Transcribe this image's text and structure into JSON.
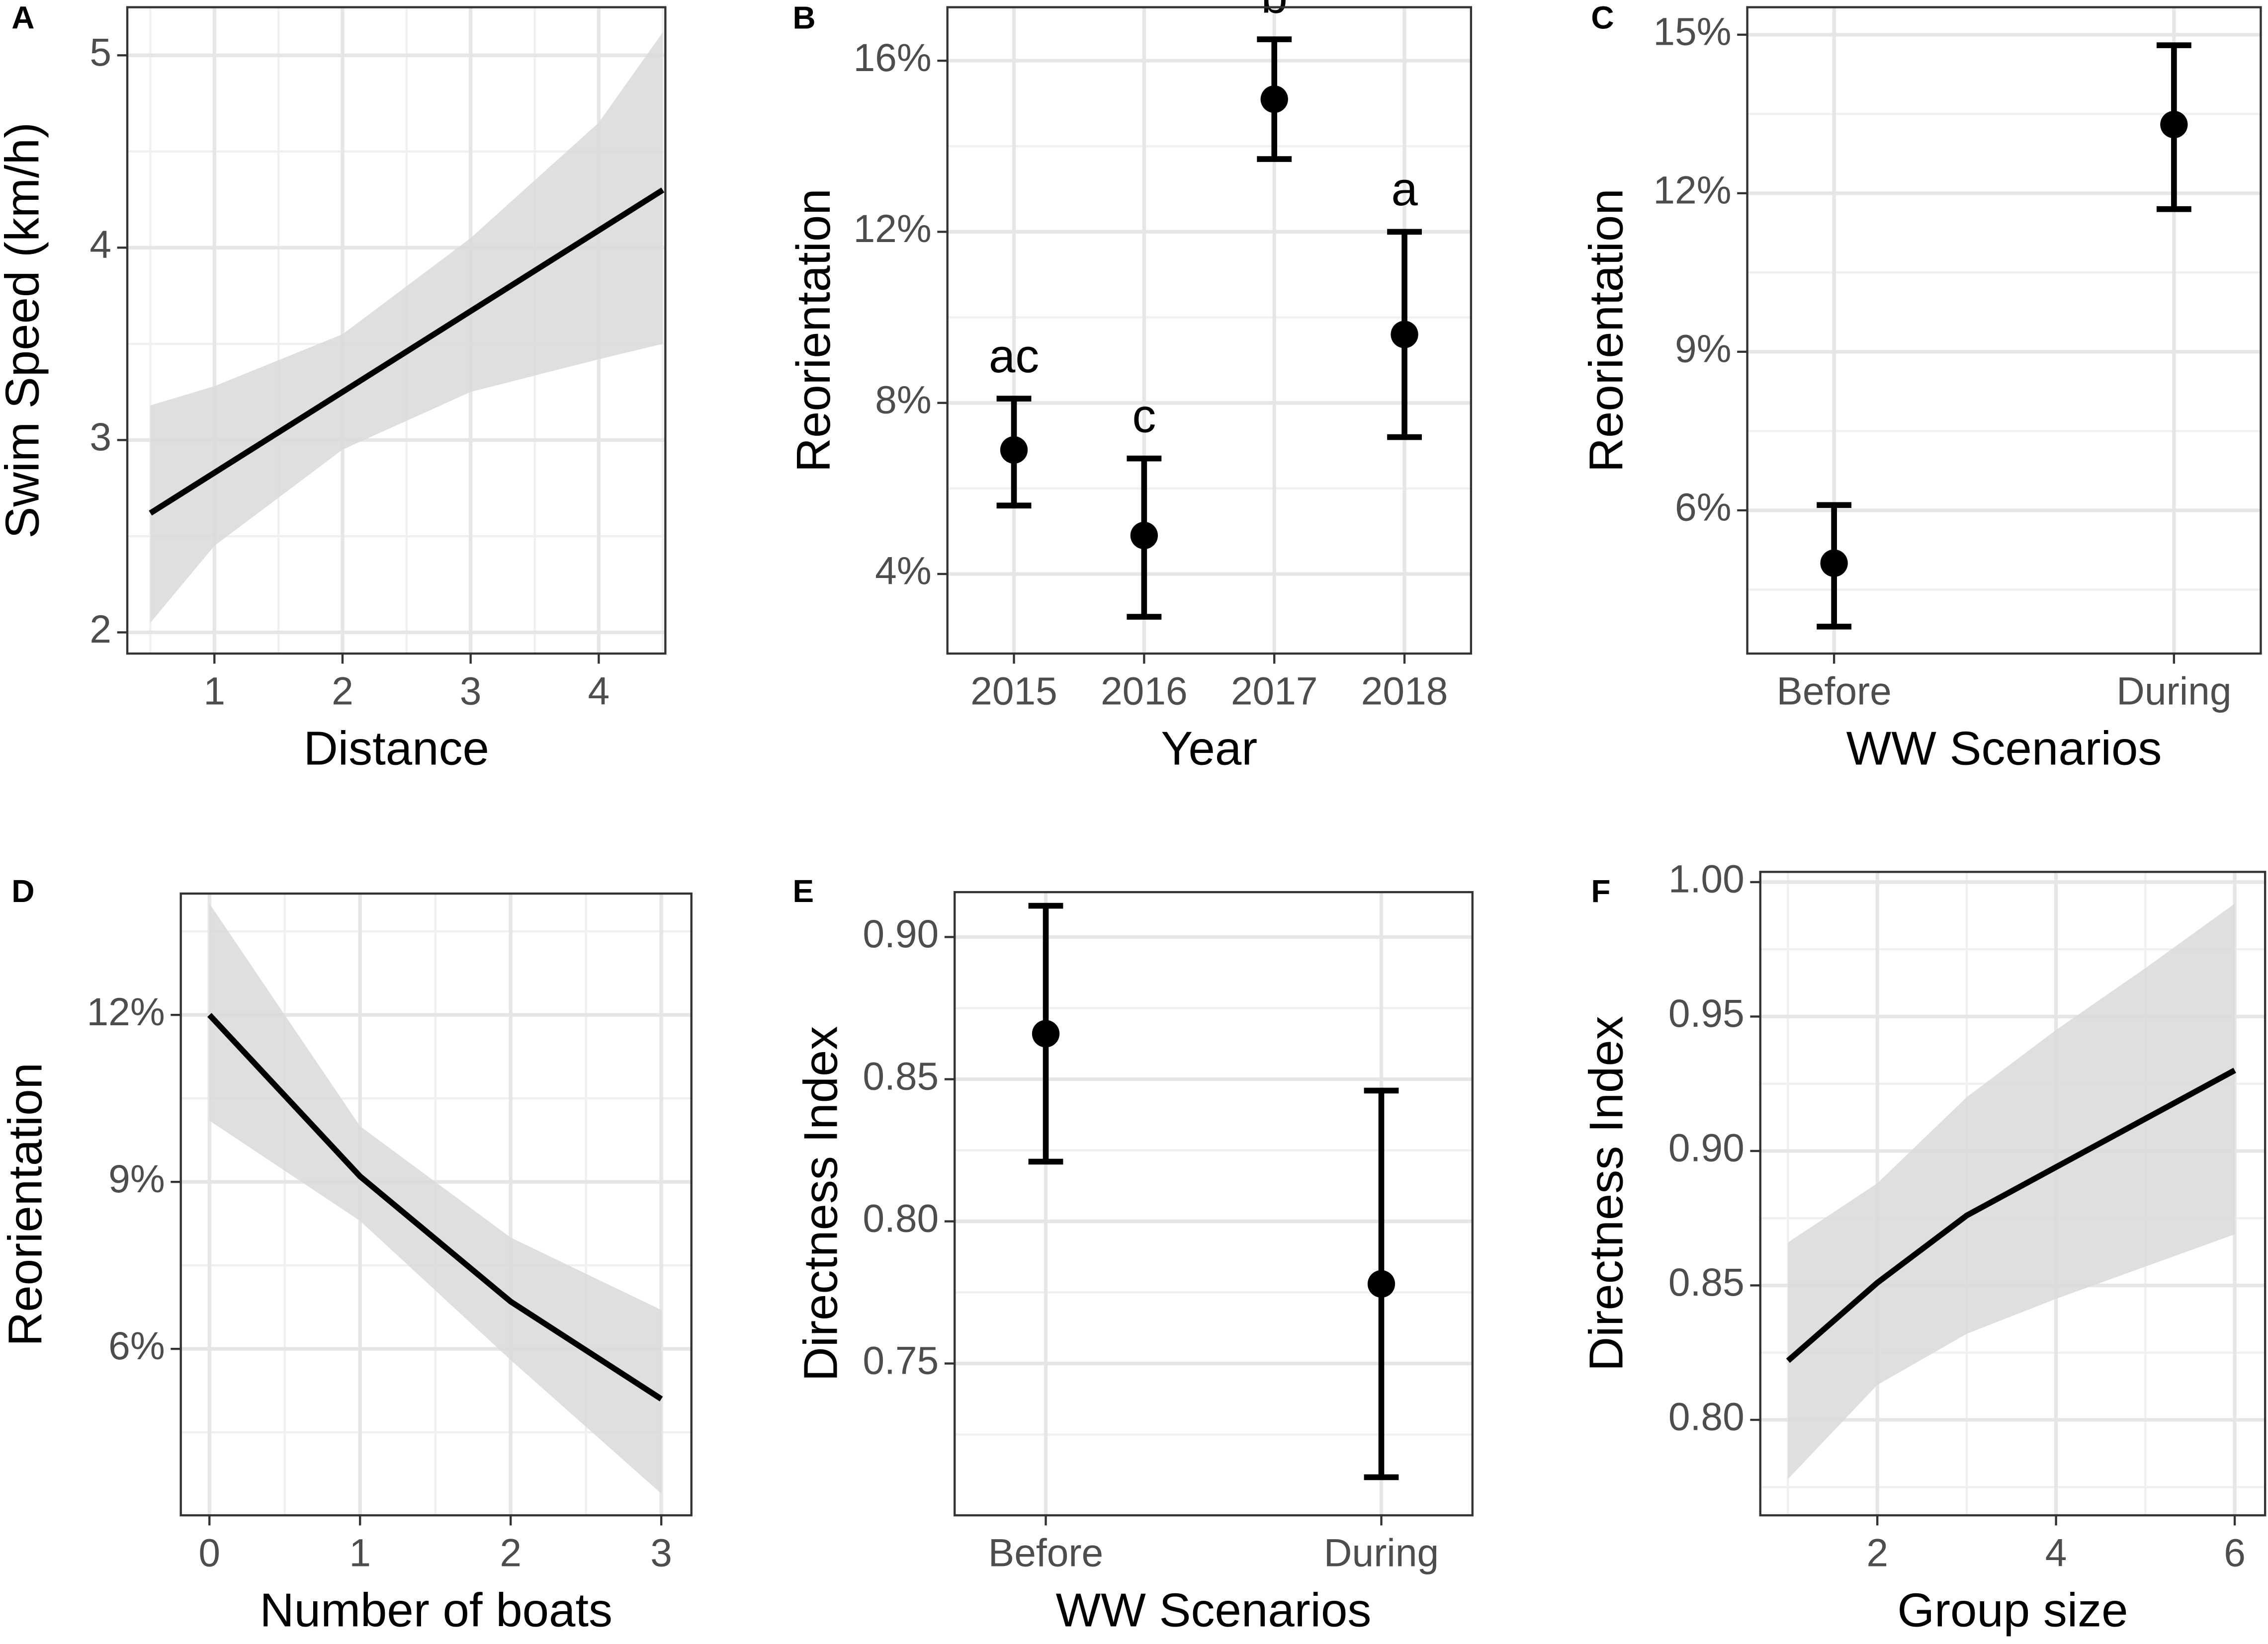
{
  "chart_data": [
    {
      "type": "line",
      "label": "A",
      "xlabel": "Distance",
      "ylabel": "Swim Speed (km/h)",
      "x": [
        0.5,
        1,
        2,
        3,
        4,
        4.5
      ],
      "values": [
        2.62,
        2.83,
        3.25,
        3.67,
        4.09,
        4.3
      ],
      "upper": [
        3.18,
        3.28,
        3.55,
        4.05,
        4.65,
        5.12
      ],
      "lower": [
        2.05,
        2.45,
        2.95,
        3.25,
        3.42,
        3.5
      ],
      "color": "#000000",
      "band_color": "#d9d9d9",
      "xlim": [
        0.32,
        4.52
      ],
      "xticks": [
        1,
        2,
        3,
        4
      ],
      "ylim": [
        1.89,
        5.25
      ],
      "yticks": [
        2,
        3,
        4,
        5
      ],
      "grid": true
    },
    {
      "type": "errorbar",
      "label": "B",
      "xlabel": "Year",
      "ylabel": "Reorientation",
      "categories": [
        "2015",
        "2016",
        "2017",
        "2018"
      ],
      "values": [
        6.9,
        4.9,
        15.1,
        9.6
      ],
      "lower": [
        5.6,
        3.0,
        13.7,
        7.2
      ],
      "upper": [
        8.1,
        6.7,
        16.5,
        12.0
      ],
      "annotations": [
        "ac",
        "c",
        "b",
        "a"
      ],
      "color": "#000000",
      "ylim": [
        2.14,
        17.25
      ],
      "yticks": [
        {
          "value": 4,
          "label": "4%"
        },
        {
          "value": 8,
          "label": "8%"
        },
        {
          "value": 12,
          "label": "12%"
        },
        {
          "value": 16,
          "label": "16%"
        }
      ],
      "grid": true
    },
    {
      "type": "errorbar",
      "label": "C",
      "xlabel": "WW Scenarios",
      "ylabel": "Reorientation",
      "categories": [
        "Before",
        "During"
      ],
      "values": [
        5.0,
        13.3
      ],
      "lower": [
        3.8,
        11.7
      ],
      "upper": [
        6.1,
        14.8
      ],
      "color": "#000000",
      "ylim": [
        3.29,
        15.52
      ],
      "yticks": [
        {
          "value": 6,
          "label": "6%"
        },
        {
          "value": 9,
          "label": "9%"
        },
        {
          "value": 12,
          "label": "12%"
        },
        {
          "value": 15,
          "label": "15%"
        }
      ],
      "grid": true
    },
    {
      "type": "line",
      "label": "D",
      "xlabel": "Number of boats",
      "ylabel": "Reorientation",
      "x": [
        0,
        1,
        2,
        3
      ],
      "values": [
        12.0,
        9.1,
        6.85,
        5.1
      ],
      "upper": [
        14.0,
        10.0,
        8.0,
        6.7
      ],
      "lower": [
        10.1,
        8.3,
        5.8,
        3.4
      ],
      "color": "#000000",
      "band_color": "#d9d9d9",
      "xlim": [
        -0.19,
        3.2
      ],
      "xticks": [
        0,
        1,
        2,
        3
      ],
      "ylim": [
        3.01,
        14.18
      ],
      "yticks": [
        {
          "value": 6,
          "label": "6%"
        },
        {
          "value": 9,
          "label": "9%"
        },
        {
          "value": 12,
          "label": "12%"
        }
      ],
      "grid": true
    },
    {
      "type": "errorbar",
      "label": "E",
      "xlabel": "WW Scenarios",
      "ylabel": "Directness Index",
      "categories": [
        "Before",
        "During"
      ],
      "values": [
        0.866,
        0.778
      ],
      "lower": [
        0.821,
        0.71
      ],
      "upper": [
        0.911,
        0.846
      ],
      "color": "#000000",
      "ylim": [
        0.6966,
        0.9158
      ],
      "yticks": [
        0.75,
        {
          "value": 0.8,
          "label": "0.80"
        },
        0.85,
        {
          "value": 0.9,
          "label": "0.90"
        }
      ],
      "grid": true
    },
    {
      "type": "line",
      "label": "F",
      "xlabel": "Group size",
      "ylabel": "Directness Index",
      "x": [
        1,
        2,
        3,
        4,
        5,
        6
      ],
      "values": [
        0.822,
        0.851,
        0.876,
        0.894,
        0.912,
        0.93
      ],
      "upper": [
        0.866,
        0.888,
        0.92,
        0.945,
        0.968,
        0.992
      ],
      "lower": [
        0.778,
        0.813,
        0.832,
        0.845,
        0.857,
        0.869
      ],
      "color": "#000000",
      "band_color": "#d9d9d9",
      "xlim": [
        0.69,
        6.34
      ],
      "xticks": [
        2,
        4,
        6
      ],
      "ylim": [
        0.7645,
        1.0038
      ],
      "yticks": [
        {
          "value": 0.8,
          "label": "0.80"
        },
        0.85,
        {
          "value": 0.9,
          "label": "0.90"
        },
        0.95,
        {
          "value": 1,
          "label": "1.00"
        }
      ],
      "grid": true
    }
  ]
}
